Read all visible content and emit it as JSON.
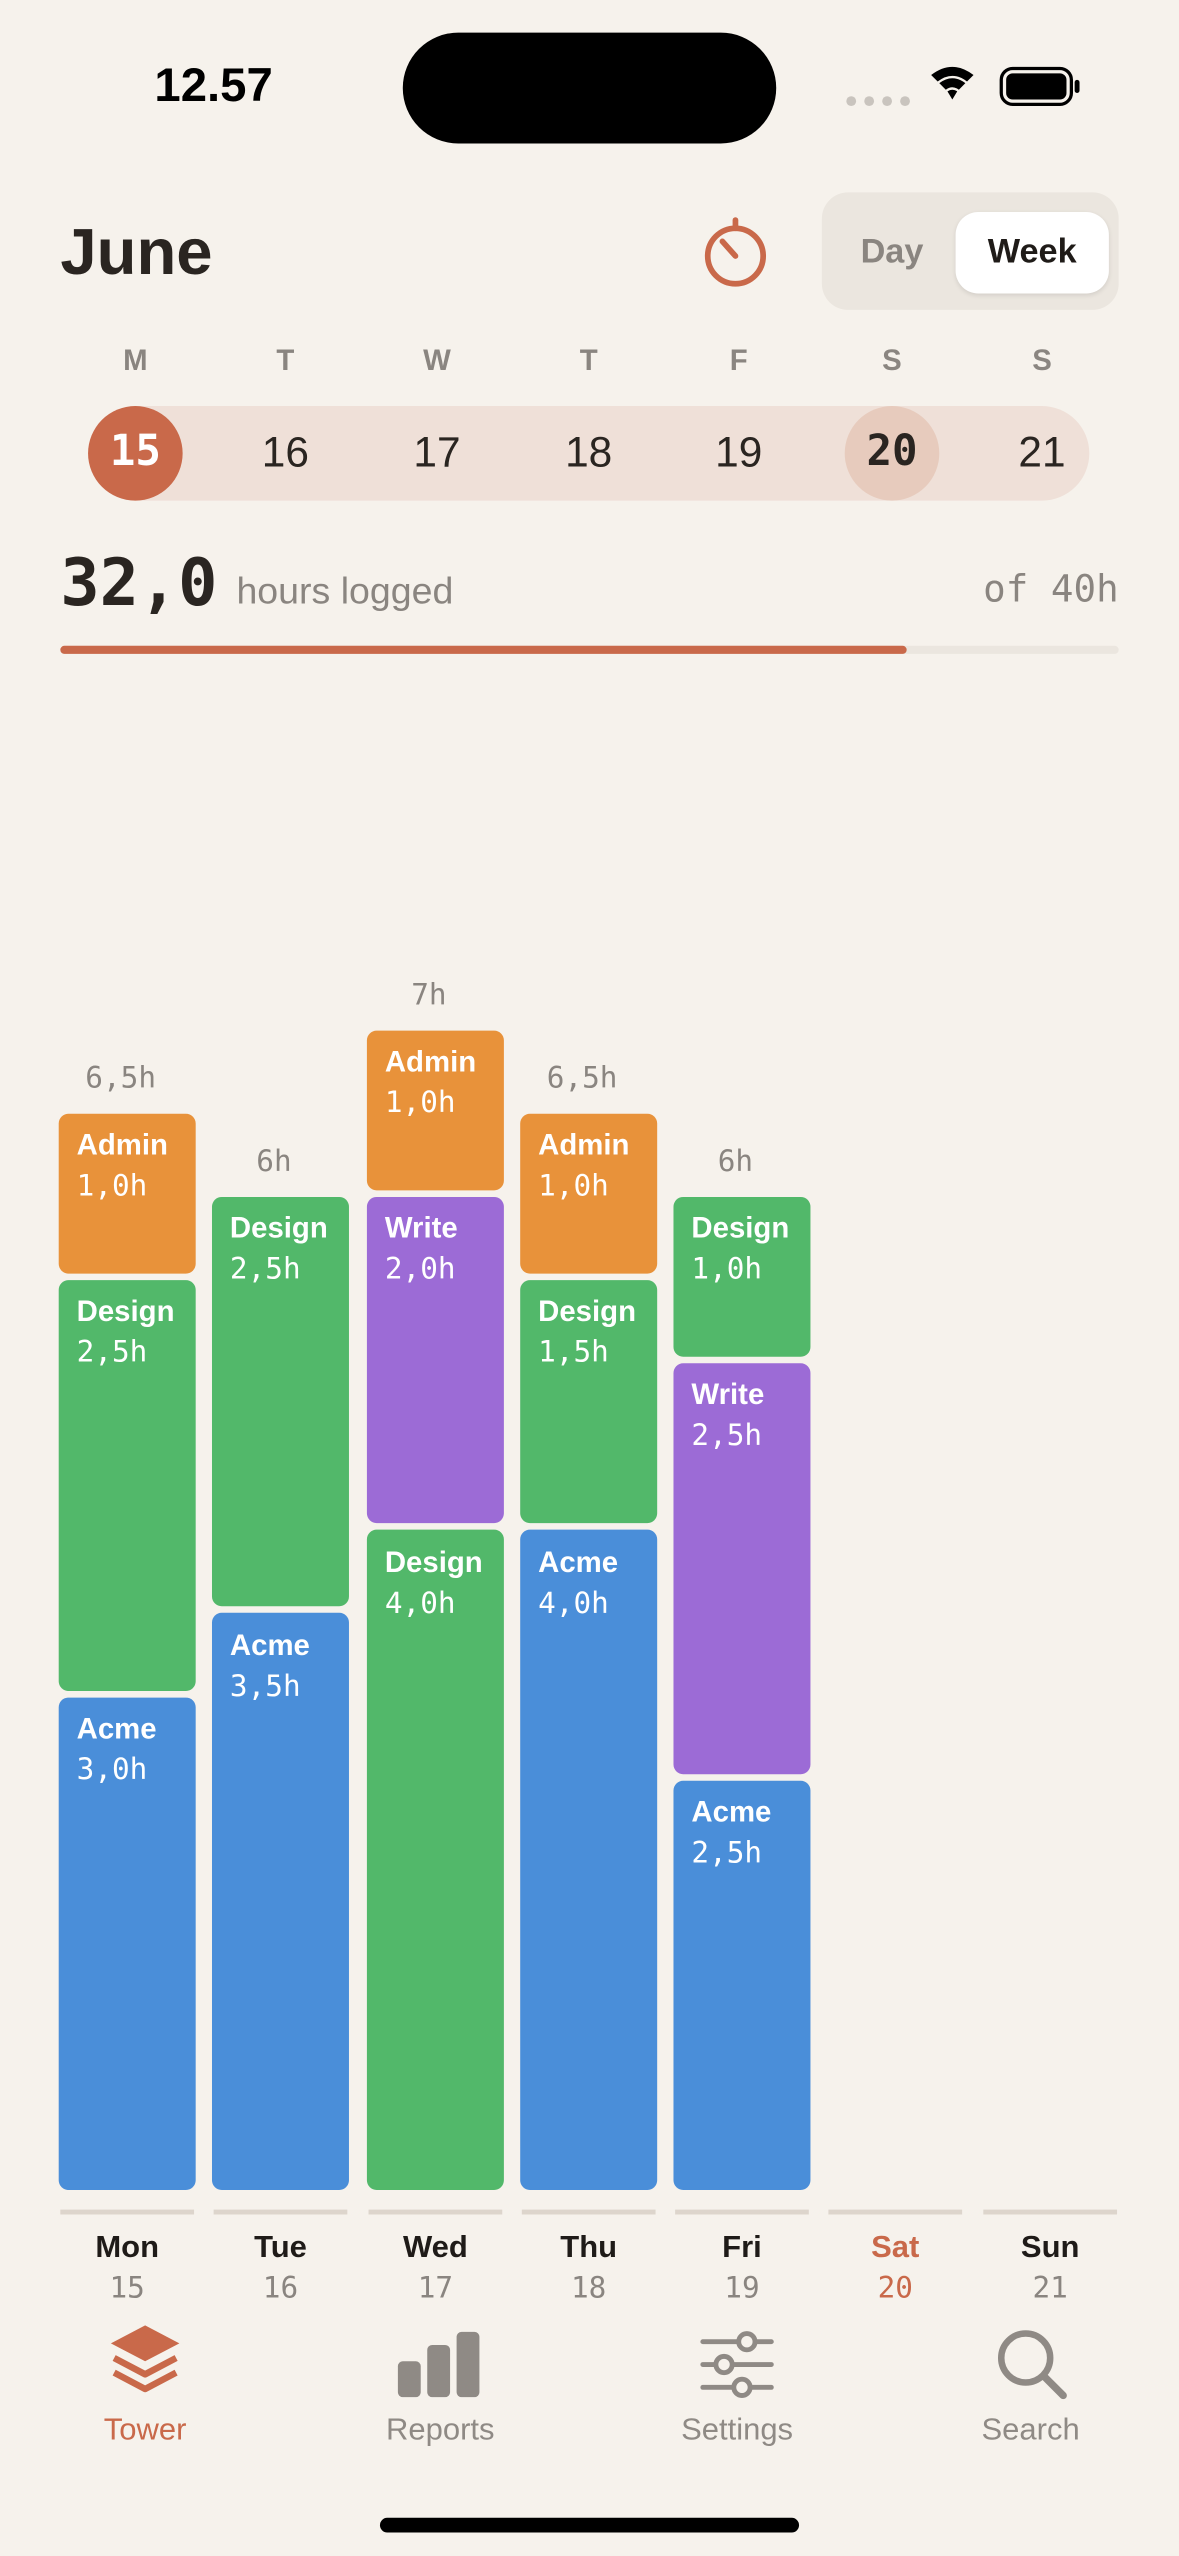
{
  "status_bar": {
    "time": "12.57"
  },
  "header": {
    "month": "June",
    "view_options": [
      "Day",
      "Week"
    ],
    "selected_view_index": 1
  },
  "week_strip": {
    "weekday_letters": [
      "M",
      "T",
      "W",
      "T",
      "F",
      "S",
      "S"
    ],
    "dates": [
      "15",
      "16",
      "17",
      "18",
      "19",
      "20",
      "21"
    ],
    "selected_index": 0,
    "today_index": 5
  },
  "summary": {
    "logged": 32,
    "logged_label": "32,0",
    "logged_caption": "hours logged",
    "goal": 40,
    "goal_label": "of 40h"
  },
  "project_colors": {
    "Acme": "#4a8ed9",
    "Design": "#52b86a",
    "Admin": "#e8923a",
    "Write": "#9c6bd6"
  },
  "days": [
    {
      "day": "Mon",
      "date": "15",
      "total_label": "6,5h",
      "segments": [
        {
          "name": "Acme",
          "value": 3,
          "label": "3,0h"
        },
        {
          "name": "Design",
          "value": 2.5,
          "label": "2,5h"
        },
        {
          "name": "Admin",
          "value": 1,
          "label": "1,0h"
        }
      ]
    },
    {
      "day": "Tue",
      "date": "16",
      "total_label": "6h",
      "segments": [
        {
          "name": "Acme",
          "value": 3.5,
          "label": "3,5h"
        },
        {
          "name": "Design",
          "value": 2.5,
          "label": "2,5h"
        }
      ]
    },
    {
      "day": "Wed",
      "date": "17",
      "total_label": "7h",
      "segments": [
        {
          "name": "Design",
          "value": 4,
          "label": "4,0h"
        },
        {
          "name": "Write",
          "value": 2,
          "label": "2,0h"
        },
        {
          "name": "Admin",
          "value": 1,
          "label": "1,0h"
        }
      ]
    },
    {
      "day": "Thu",
      "date": "18",
      "total_label": "6,5h",
      "segments": [
        {
          "name": "Acme",
          "value": 4,
          "label": "4,0h"
        },
        {
          "name": "Design",
          "value": 1.5,
          "label": "1,5h"
        },
        {
          "name": "Admin",
          "value": 1,
          "label": "1,0h"
        }
      ]
    },
    {
      "day": "Fri",
      "date": "19",
      "total_label": "6h",
      "segments": [
        {
          "name": "Acme",
          "value": 2.5,
          "label": "2,5h"
        },
        {
          "name": "Write",
          "value": 2.5,
          "label": "2,5h"
        },
        {
          "name": "Design",
          "value": 1,
          "label": "1,0h"
        }
      ]
    },
    {
      "day": "Sat",
      "date": "20",
      "total_label": null,
      "segments": []
    },
    {
      "day": "Sun",
      "date": "21",
      "total_label": null,
      "segments": []
    }
  ],
  "tab_bar": {
    "tabs": [
      "Tower",
      "Reports",
      "Settings",
      "Search"
    ],
    "selected_index": 0
  }
}
